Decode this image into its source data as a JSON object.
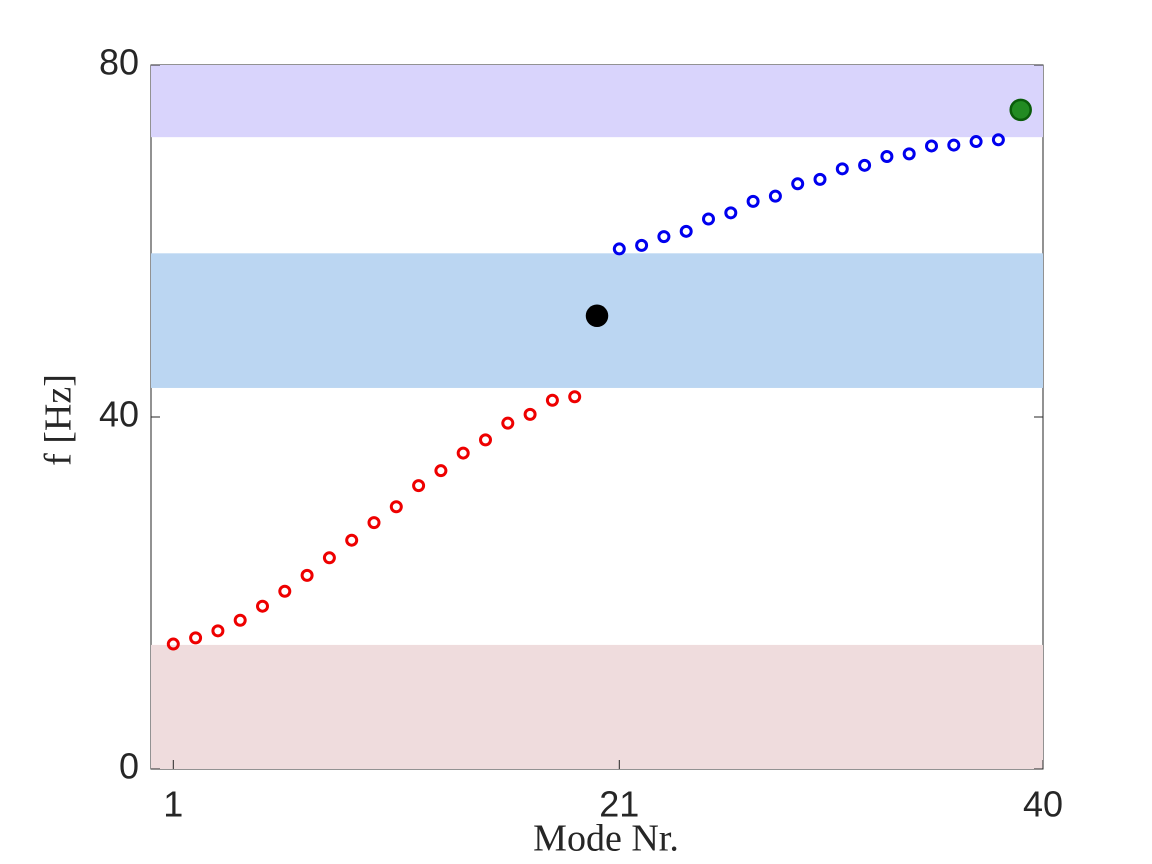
{
  "chart_data": {
    "type": "scatter",
    "xlabel": "Mode Nr.",
    "ylabel": "f [Hz]",
    "xlim": [
      0,
      40
    ],
    "xticks": [
      1,
      21,
      40
    ],
    "ylim": [
      0,
      80
    ],
    "yticks": [
      0,
      40,
      80
    ],
    "bands": [
      {
        "ylim": [
          71.8,
          80
        ],
        "color": "#d9d4fc"
      },
      {
        "ylim": [
          43.3,
          58.6
        ],
        "color": "#bbd6f2"
      },
      {
        "ylim": [
          0,
          14.1
        ],
        "color": "#efdcdd"
      }
    ],
    "series": [
      {
        "color": "#ee0000",
        "marker": "open",
        "x": [
          1,
          2,
          3,
          4,
          5,
          6,
          7,
          8,
          9,
          10,
          11,
          12,
          13,
          14,
          15,
          16,
          17,
          18,
          19
        ],
        "values": [
          14.2,
          14.9,
          15.7,
          16.9,
          18.5,
          20.2,
          22.0,
          24.0,
          26.0,
          28.0,
          29.8,
          32.2,
          33.9,
          35.9,
          37.4,
          39.3,
          40.3,
          41.9,
          42.3
        ]
      },
      {
        "color": "#000000",
        "marker": "filled",
        "x": [
          20
        ],
        "values": [
          51.5
        ]
      },
      {
        "color": "#0000ee",
        "marker": "open",
        "x": [
          21,
          22,
          23,
          24,
          25,
          26,
          27,
          28,
          29,
          30,
          31,
          32,
          33,
          34,
          35,
          36,
          37,
          38
        ],
        "values": [
          59.1,
          59.5,
          60.5,
          61.1,
          62.5,
          63.2,
          64.5,
          65.1,
          66.5,
          67.0,
          68.2,
          68.6,
          69.6,
          69.9,
          70.8,
          70.9,
          71.3,
          71.5
        ]
      },
      {
        "color": "#228b22",
        "edgecolor": "#0a5c0a",
        "marker": "filled",
        "x": [
          39
        ],
        "values": [
          74.9
        ]
      }
    ]
  }
}
